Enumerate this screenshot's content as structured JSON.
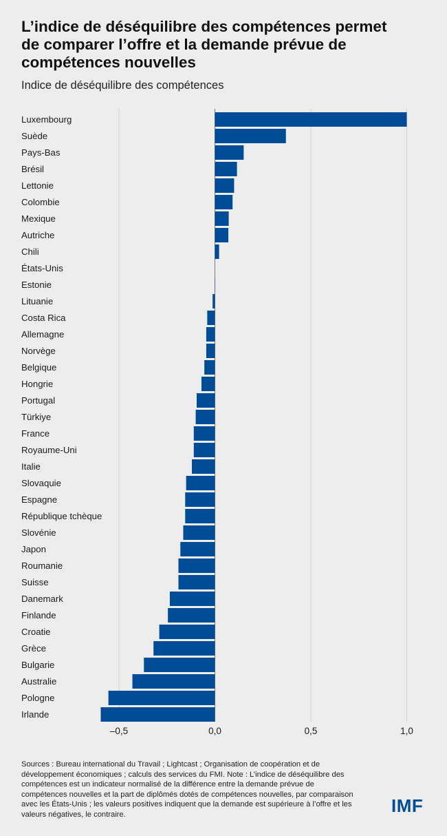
{
  "header": {
    "title": "L’indice de déséquilibre des compétences permet de comparer l’offre et la demande prévue de compétences nouvelles",
    "subtitle": "Indice de déséquilibre des compétences"
  },
  "footer": {
    "note": "Sources : Bureau international du Travail ; Lightcast ; Organisation de coopération et de développement économiques ; calculs des services du FMI. Note : L’indice de déséquilibre des compétences est un indicateur normalisé de la différence entre la demande prévue de compétences nouvelles et la part de diplômés dotés de compétences nouvelles, par comparaison avec les États-Unis ; les valeurs positives indiquent que la demande est supérieure à l’offre et les valeurs négatives, le contraire.",
    "logo": "IMF"
  },
  "colors": {
    "bar": "#004c97",
    "background": "#ededed"
  },
  "chart_data": {
    "type": "bar",
    "orientation": "horizontal",
    "title": "L’indice de déséquilibre des compétences permet de comparer l’offre et la demande prévue de compétences nouvelles",
    "subtitle": "Indice de déséquilibre des compétences",
    "xlabel": "",
    "ylabel": "",
    "xlim": [
      -0.6,
      1.0
    ],
    "xticks": [
      -0.5,
      0.0,
      0.5,
      1.0
    ],
    "xtick_labels": [
      "–0,5",
      "0,0",
      "0,5",
      "1,0"
    ],
    "grid": true,
    "categories": [
      "Luxembourg",
      "Suède",
      "Pays-Bas",
      "Brésil",
      "Lettonie",
      "Colombie",
      "Mexique",
      "Autriche",
      "Chili",
      "États-Unis",
      "Estonie",
      "Lituanie",
      "Costa Rica",
      "Allemagne",
      "Norvège",
      "Belgique",
      "Hongrie",
      "Portugal",
      "Türkiye",
      "France",
      "Royaume-Uni",
      "Italie",
      "Slovaquie",
      "Espagne",
      "République tchèque",
      "Slovénie",
      "Japon",
      "Roumanie",
      "Suisse",
      "Danemark",
      "Finlande",
      "Croatie",
      "Grèce",
      "Bulgarie",
      "Australie",
      "Pologne",
      "Irlande"
    ],
    "values": [
      1.0,
      0.37,
      0.15,
      0.115,
      0.1,
      0.092,
      0.072,
      0.07,
      0.022,
      0.0,
      0.001,
      -0.012,
      -0.04,
      -0.045,
      -0.045,
      -0.055,
      -0.07,
      -0.095,
      -0.1,
      -0.11,
      -0.11,
      -0.12,
      -0.15,
      -0.155,
      -0.155,
      -0.165,
      -0.18,
      -0.19,
      -0.19,
      -0.235,
      -0.245,
      -0.29,
      -0.32,
      -0.37,
      -0.43,
      -0.555,
      -0.595
    ]
  }
}
